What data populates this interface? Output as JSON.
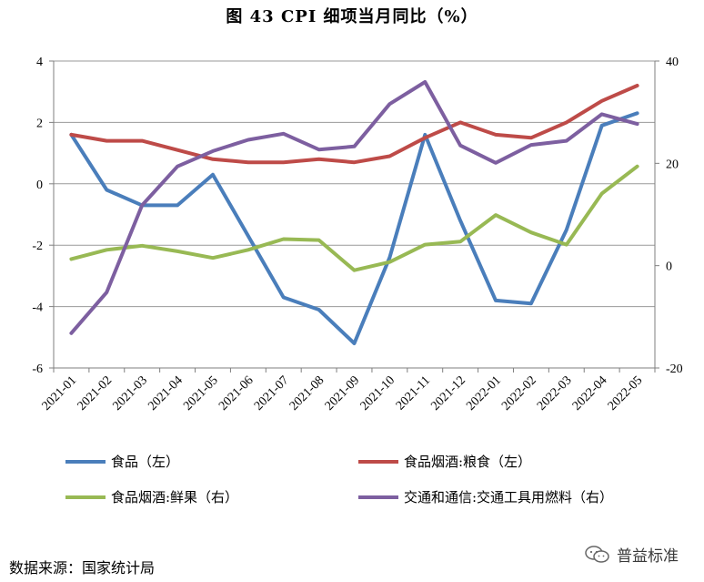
{
  "chart_data": {
    "type": "line",
    "title": "图 43 CPI 细项当月同比（%）",
    "categories": [
      "2021-01",
      "2021-02",
      "2021-03",
      "2021-04",
      "2021-05",
      "2021-06",
      "2021-07",
      "2021-08",
      "2021-09",
      "2021-10",
      "2021-11",
      "2021-12",
      "2022-01",
      "2022-02",
      "2022-03",
      "2022-04",
      "2022-05"
    ],
    "y_left": {
      "ylim": [
        -6,
        4
      ],
      "ticks": [
        -6,
        -4,
        -2,
        0,
        2,
        4
      ]
    },
    "y_right": {
      "ylim": [
        -20,
        40
      ],
      "ticks": [
        -20,
        0,
        20,
        40
      ]
    },
    "grid": true,
    "legend_position": "bottom",
    "series": [
      {
        "name": "食品（左）",
        "axis": "left",
        "color": "#4a7ebb",
        "values": [
          1.6,
          -0.2,
          -0.7,
          -0.7,
          0.3,
          -1.7,
          -3.7,
          -4.1,
          -5.2,
          -2.4,
          1.6,
          -1.2,
          -3.8,
          -3.9,
          -1.5,
          1.9,
          2.3
        ]
      },
      {
        "name": "食品烟酒:粮食（左）",
        "axis": "left",
        "color": "#be4b48",
        "values": [
          1.6,
          1.4,
          1.4,
          1.1,
          0.8,
          0.7,
          0.7,
          0.8,
          0.7,
          0.9,
          1.5,
          2.0,
          1.6,
          1.5,
          2.0,
          2.7,
          3.2
        ]
      },
      {
        "name": "食品烟酒:鲜果（右）",
        "axis": "right",
        "color": "#98b954",
        "values": [
          1.3,
          3.1,
          3.9,
          2.8,
          1.5,
          3.1,
          5.2,
          5.0,
          -0.9,
          0.7,
          4.1,
          4.7,
          9.9,
          6.5,
          4.1,
          14.1,
          19.4
        ]
      },
      {
        "name": "交通和通信:交通工具用燃料（右）",
        "axis": "right",
        "color": "#7d5fa0",
        "values": [
          -13.2,
          -5.2,
          11.8,
          19.4,
          22.4,
          24.6,
          25.8,
          22.7,
          23.3,
          31.6,
          35.9,
          23.5,
          20.1,
          23.6,
          24.4,
          29.6,
          27.7
        ]
      }
    ]
  },
  "footer": {
    "source": "数据来源：国家统计局",
    "watermark": "普益标准",
    "watermark_icon": "wechat-icon"
  }
}
